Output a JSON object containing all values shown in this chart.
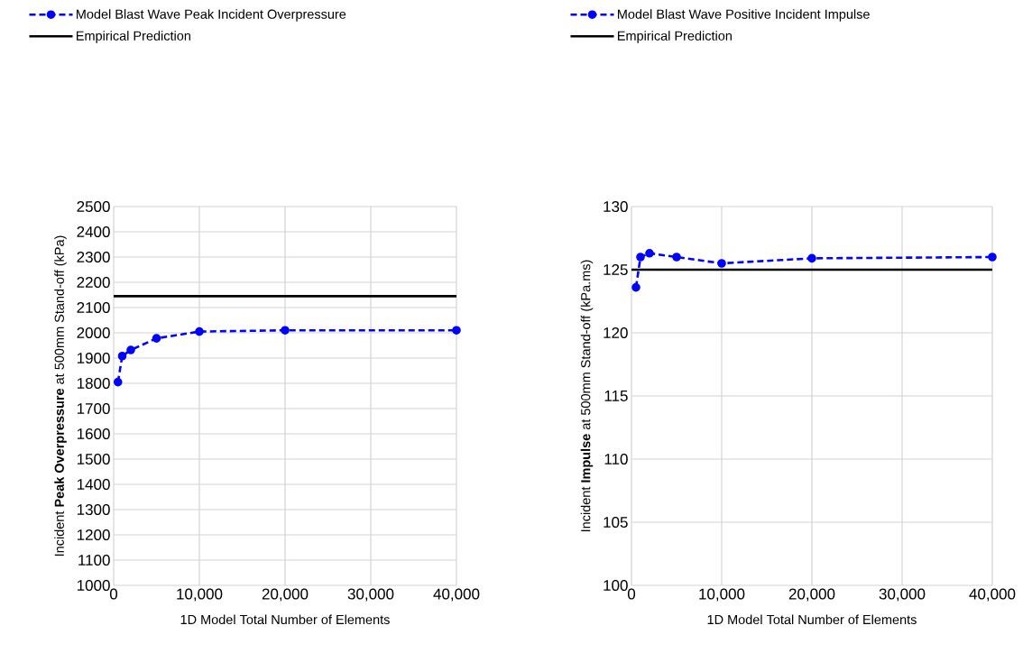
{
  "chart_data": [
    {
      "type": "line",
      "xlabel": "1D Model Total Number of Elements",
      "ylabel": "Incident **Peak Overpressure** at 500mm Stand-off (kPa)",
      "xlim": [
        0,
        40000
      ],
      "xticks": [
        0,
        {
          "value": 10000,
          "label": "10,000"
        },
        {
          "value": 20000,
          "label": "20,000"
        },
        {
          "value": 30000,
          "label": "30,000"
        },
        {
          "value": 40000,
          "label": "40,000"
        }
      ],
      "ylim": [
        1000,
        2500
      ],
      "yticks": [
        1000,
        1100,
        1200,
        1300,
        1400,
        1500,
        1600,
        1700,
        1800,
        1900,
        2000,
        2100,
        2200,
        2300,
        2400,
        2500
      ],
      "grid": true,
      "legend": "top",
      "series": [
        {
          "name": "Model Blast Wave Peak Incident Overpressure",
          "color": "#0000ff",
          "marker": "circle",
          "line_style": "dashed",
          "x": [
            500,
            1000,
            2000,
            5000,
            10000,
            20000,
            40000
          ],
          "values": [
            1805,
            1908,
            1932,
            1978,
            2005,
            2010,
            2010
          ]
        },
        {
          "name": "Empirical Prediction",
          "color": "#000000",
          "marker": "none",
          "line_style": "solid",
          "x": [
            0,
            40000
          ],
          "values": [
            2145,
            2145
          ]
        }
      ]
    },
    {
      "type": "line",
      "xlabel": "1D Model Total Number of Elements",
      "ylabel": "Incident **Impulse** at 500mm Stand-off (kPa.ms)",
      "xlim": [
        0,
        40000
      ],
      "xticks": [
        0,
        {
          "value": 10000,
          "label": "10,000"
        },
        {
          "value": 20000,
          "label": "20,000"
        },
        {
          "value": 30000,
          "label": "30,000"
        },
        {
          "value": 40000,
          "label": "40,000"
        }
      ],
      "ylim": [
        100,
        130
      ],
      "yticks": [
        100,
        105,
        110,
        115,
        120,
        125,
        130
      ],
      "grid": true,
      "legend": "top",
      "series": [
        {
          "name": "Model Blast Wave Positive Incident Impulse",
          "color": "#0000ff",
          "marker": "circle",
          "line_style": "dashed",
          "x": [
            500,
            1000,
            2000,
            5000,
            10000,
            20000,
            40000
          ],
          "values": [
            123.6,
            126.0,
            126.3,
            126.0,
            125.5,
            125.9,
            126.0
          ]
        },
        {
          "name": "Empirical Prediction",
          "color": "#000000",
          "marker": "none",
          "line_style": "solid",
          "x": [
            0,
            40000
          ],
          "values": [
            125.0,
            125.0
          ]
        }
      ]
    }
  ]
}
